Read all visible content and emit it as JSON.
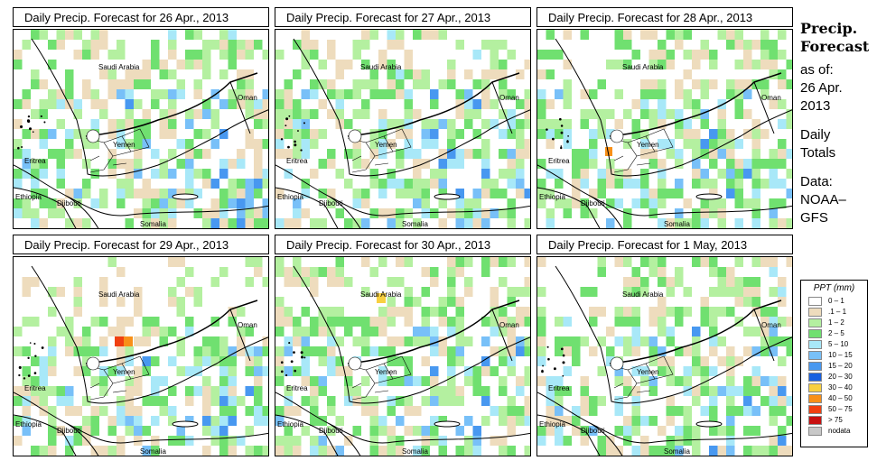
{
  "panels": [
    {
      "title": "Daily Precip. Forecast for  26 Apr., 2013"
    },
    {
      "title": "Daily Precip. Forecast for  27 Apr., 2013"
    },
    {
      "title": "Daily Precip. Forecast for  28 Apr., 2013"
    },
    {
      "title": "Daily Precip. Forecast for  29 Apr., 2013"
    },
    {
      "title": "Daily Precip. Forecast for  30 Apr., 2013"
    },
    {
      "title": "Daily Precip. Forecast for  1 May, 2013"
    }
  ],
  "map_labels": {
    "saudi": "Saudi Arabia",
    "oman": "Oman",
    "yemen": "Yemen",
    "eritrea": "Eritrea",
    "ethiopia": "Ethiopia",
    "djibouti": "Djibouti",
    "somalia": "Somalia"
  },
  "sidebar": {
    "title_line1": "Precip.",
    "title_line2": "Forecast",
    "asof": "as of:",
    "date_line1": "26 Apr.",
    "date_line2": "2013",
    "totals_line1": "Daily",
    "totals_line2": "Totals",
    "data_line1": "Data:",
    "data_line2": "NOAA–",
    "data_line3": "GFS"
  },
  "legend": {
    "title": "PPT (mm)",
    "items": [
      {
        "label": "0 – 1",
        "color": "#ffffff"
      },
      {
        "label": ".1 – 1",
        "color": "#eedcbd"
      },
      {
        "label": "1 – 2",
        "color": "#b4f0a0"
      },
      {
        "label": "2 – 5",
        "color": "#70e070"
      },
      {
        "label": "5 – 10",
        "color": "#a8e8f8"
      },
      {
        "label": "10 – 15",
        "color": "#78c0f8"
      },
      {
        "label": "15 – 20",
        "color": "#4898f0"
      },
      {
        "label": "20 – 30",
        "color": "#1860e0"
      },
      {
        "label": "30 – 40",
        "color": "#f8d040"
      },
      {
        "label": "40 – 50",
        "color": "#f89018"
      },
      {
        "label": "50 – 75",
        "color": "#f04010"
      },
      {
        "label": "> 75",
        "color": "#c81010"
      },
      {
        "label": "nodata",
        "color": "#c8c8c8"
      }
    ]
  }
}
